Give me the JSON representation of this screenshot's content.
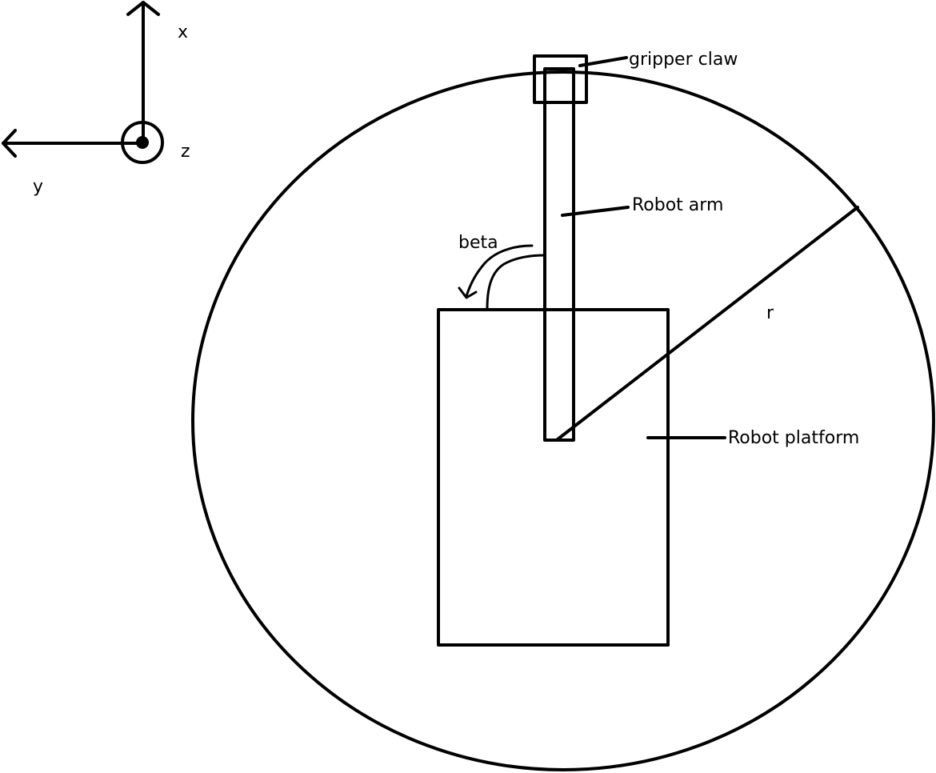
{
  "labels": {
    "axis_x": "x",
    "axis_y": "y",
    "axis_z": "z",
    "gripper_claw": "gripper claw",
    "robot_arm": "Robot arm",
    "angle_beta": "beta",
    "radius_r": "r",
    "robot_platform": "Robot platform"
  },
  "colors": {
    "ink": "#000000",
    "background": "#ffffff"
  }
}
